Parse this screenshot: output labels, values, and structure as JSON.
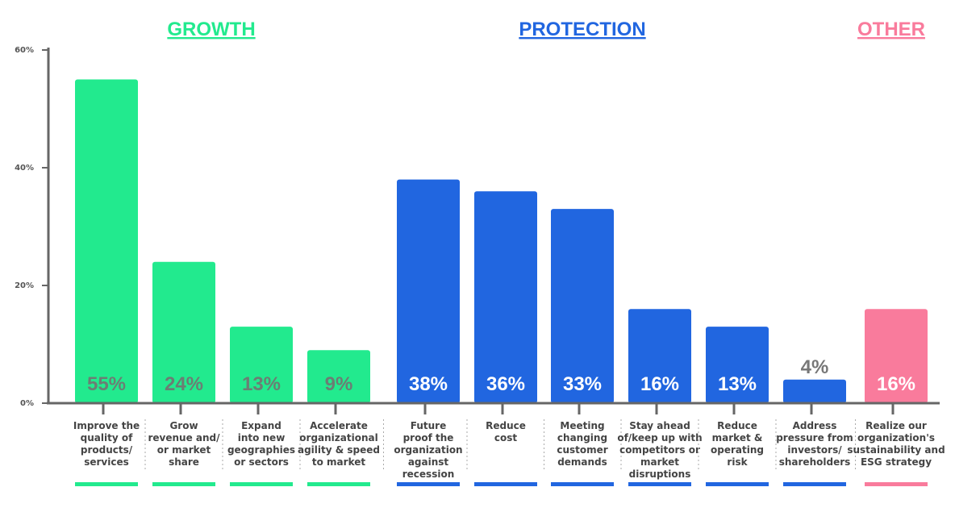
{
  "chart_data": {
    "type": "bar",
    "ylim": [
      0,
      60
    ],
    "yticks": [
      "0%",
      "20%",
      "40%",
      "60%"
    ],
    "groups": [
      {
        "name": "GROWTH",
        "color": "#22EA8E"
      },
      {
        "name": "PROTECTION",
        "color": "#2166E0"
      },
      {
        "name": "OTHER",
        "color": "#F97B9C"
      }
    ],
    "bars": [
      {
        "category": "Improve the quality of products/ services",
        "lines": [
          "Improve the",
          "quality of",
          "products/",
          "services"
        ],
        "value": 55,
        "label": "55%",
        "group": "GROWTH"
      },
      {
        "category": "Grow revenue and/ or market share",
        "lines": [
          "Grow",
          "revenue and/",
          "or market",
          "share"
        ],
        "value": 24,
        "label": "24%",
        "group": "GROWTH"
      },
      {
        "category": "Expand into new geographies or sectors",
        "lines": [
          "Expand",
          "into new",
          "geographies",
          "or sectors"
        ],
        "value": 13,
        "label": "13%",
        "group": "GROWTH"
      },
      {
        "category": "Accelerate organizational agility & speed to market",
        "lines": [
          "Accelerate",
          "organizational",
          "agility & speed",
          "to market"
        ],
        "value": 9,
        "label": "9%",
        "group": "GROWTH"
      },
      {
        "category": "Future proof the organization against recession",
        "lines": [
          "Future",
          "proof the",
          "organization",
          "against",
          "recession"
        ],
        "value": 38,
        "label": "38%",
        "group": "PROTECTION"
      },
      {
        "category": "Reduce cost",
        "lines": [
          "Reduce",
          "cost"
        ],
        "value": 36,
        "label": "36%",
        "group": "PROTECTION"
      },
      {
        "category": "Meeting changing customer demands",
        "lines": [
          "Meeting",
          "changing",
          "customer",
          "demands"
        ],
        "value": 33,
        "label": "33%",
        "group": "PROTECTION"
      },
      {
        "category": "Stay ahead of/keep up with competitors or market disruptions",
        "lines": [
          "Stay ahead",
          "of/keep up with",
          "competitors or",
          "market",
          "disruptions"
        ],
        "value": 16,
        "label": "16%",
        "group": "PROTECTION"
      },
      {
        "category": "Reduce market & operating risk",
        "lines": [
          "Reduce",
          "market &",
          "operating",
          "risk"
        ],
        "value": 13,
        "label": "13%",
        "group": "PROTECTION"
      },
      {
        "category": "Address pressure from investors/ shareholders",
        "lines": [
          "Address",
          "pressure from",
          "investors/",
          "shareholders"
        ],
        "value": 4,
        "label": "4%",
        "group": "PROTECTION"
      },
      {
        "category": "Realize our organization's sustainability and ESG strategy",
        "lines": [
          "Realize our",
          "organization's",
          "sustainability and",
          "ESG strategy"
        ],
        "value": 16,
        "label": "16%",
        "group": "OTHER"
      }
    ]
  }
}
